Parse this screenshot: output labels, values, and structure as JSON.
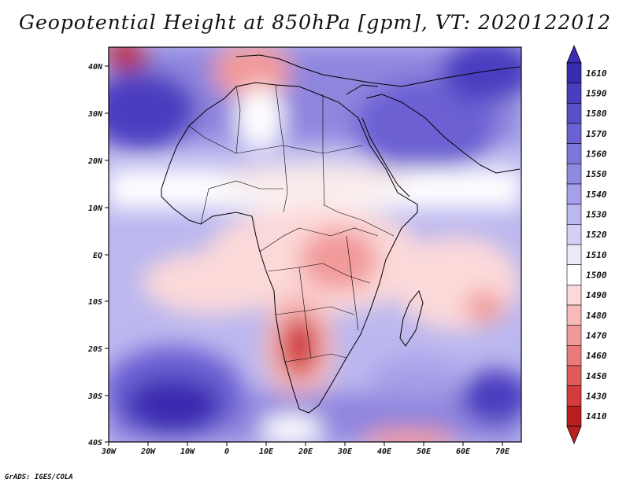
{
  "title": "Geopotential Height at 850hPa [gpm], VT: 2020122012",
  "credit": "GrADS: IGES/COLA",
  "lon_labels": [
    "30W",
    "20W",
    "10W",
    "0",
    "10E",
    "20E",
    "30E",
    "40E",
    "50E",
    "60E",
    "70E"
  ],
  "lat_labels": [
    "40N",
    "30N",
    "20N",
    "10N",
    "EQ",
    "10S",
    "20S",
    "30S",
    "40S"
  ],
  "colorbar": {
    "levels": [
      "1610",
      "1590",
      "1580",
      "1570",
      "1560",
      "1550",
      "1540",
      "1530",
      "1520",
      "1510",
      "1500",
      "1490",
      "1480",
      "1470",
      "1460",
      "1450",
      "1430",
      "1410"
    ],
    "colors": [
      "#3a2bb0",
      "#4b3cc0",
      "#5a4ecb",
      "#6c60d3",
      "#7f75da",
      "#9189e0",
      "#a6a0e8",
      "#bbb7ef",
      "#d2d0f5",
      "#eceaf8",
      "#ffffff",
      "#fcd9d9",
      "#f8b9b9",
      "#f29a9a",
      "#ea7a7a",
      "#e05a5a",
      "#d23c3c",
      "#b82020"
    ]
  }
}
